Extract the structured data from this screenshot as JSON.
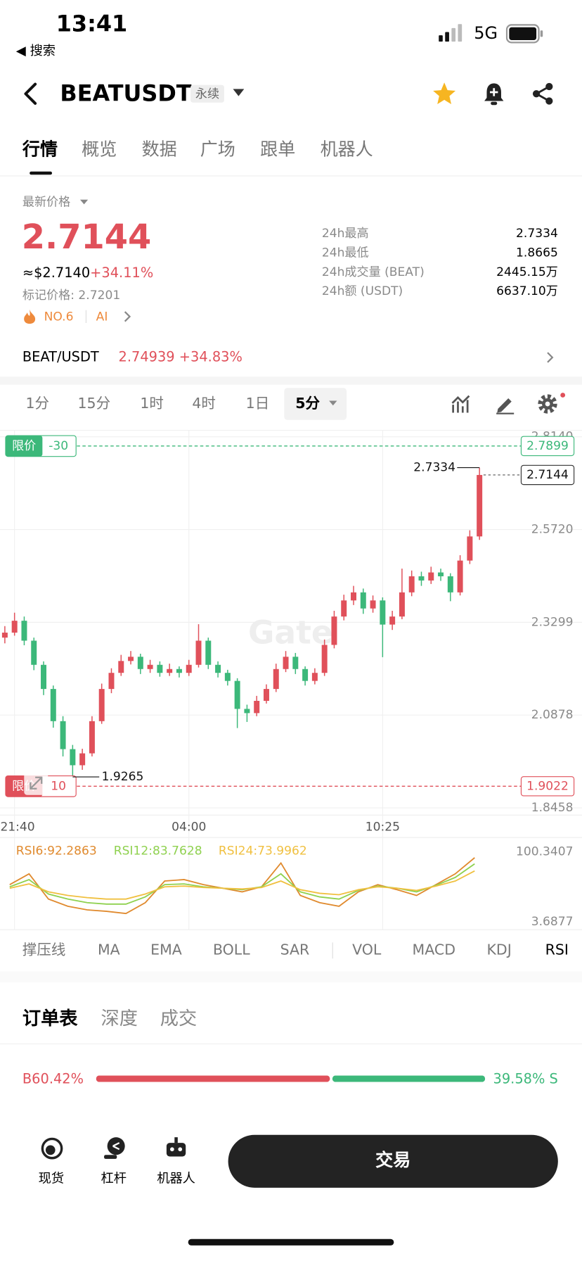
{
  "status": {
    "time": "13:41",
    "back": "◀ 搜索",
    "network": "5G"
  },
  "header": {
    "symbol": "BEATUSDT",
    "tag": "永续"
  },
  "tabs": [
    "行情",
    "概览",
    "数据",
    "广场",
    "跟单",
    "机器人"
  ],
  "price": {
    "label": "最新价格",
    "last": "2.7144",
    "usd": "≈$2.7140",
    "change": "+34.11%",
    "mark": "标记价格: 2.7201",
    "rank": "NO.6",
    "tag": "AI"
  },
  "stats": [
    [
      "24h最高",
      "2.7334"
    ],
    [
      "24h最低",
      "1.8665"
    ],
    [
      "24h成交量 (BEAT)",
      "2445.15万"
    ],
    [
      "24h额 (USDT)",
      "6637.10万"
    ]
  ],
  "spot": {
    "pair": "BEAT/USDT",
    "price": "2.74939",
    "change": "+34.83%"
  },
  "intervals": [
    "1分",
    "15分",
    "1时",
    "4时",
    "1日"
  ],
  "interval_selected": "5分",
  "chart_data": {
    "type": "candlestick",
    "up_color": "#e0505a",
    "down_color": "#3cb87a",
    "categories": [
      null,
      "21:40",
      null,
      null,
      null,
      null,
      null,
      null,
      null,
      null,
      null,
      null,
      null,
      null,
      null,
      null,
      null,
      null,
      null,
      "04:00",
      null,
      null,
      null,
      null,
      null,
      null,
      null,
      null,
      null,
      null,
      null,
      null,
      null,
      null,
      null,
      null,
      null,
      null,
      null,
      "10:25",
      null,
      null,
      null,
      null,
      null,
      null,
      null,
      null,
      null,
      null
    ],
    "ylim": [
      1.8458,
      2.814
    ],
    "yticks": [
      {
        "value": 2.814,
        "label": "2.8140"
      },
      {
        "value": 2.572,
        "label": "2.5720"
      },
      2.3299,
      2.0878,
      1.8458
    ],
    "watermark": "Gate",
    "ohlc": [
      [
        2.29,
        2.32,
        2.275,
        2.303
      ],
      [
        2.303,
        2.355,
        2.295,
        2.334
      ],
      [
        2.334,
        2.345,
        2.27,
        2.282
      ],
      [
        2.282,
        2.29,
        2.205,
        2.219
      ],
      [
        2.219,
        2.228,
        2.14,
        2.156
      ],
      [
        2.156,
        2.165,
        2.055,
        2.072
      ],
      [
        2.072,
        2.085,
        1.98,
        1.999
      ],
      [
        1.999,
        2.01,
        1.9265,
        1.957
      ],
      [
        1.957,
        2.0,
        1.945,
        1.988
      ],
      [
        1.988,
        2.085,
        1.98,
        2.072
      ],
      [
        2.072,
        2.17,
        2.065,
        2.156
      ],
      [
        2.156,
        2.21,
        2.145,
        2.198
      ],
      [
        2.198,
        2.245,
        2.19,
        2.229
      ],
      [
        2.229,
        2.255,
        2.22,
        2.24
      ],
      [
        2.24,
        2.248,
        2.195,
        2.208
      ],
      [
        2.208,
        2.232,
        2.198,
        2.219
      ],
      [
        2.219,
        2.228,
        2.188,
        2.198
      ],
      [
        2.198,
        2.222,
        2.19,
        2.208
      ],
      [
        2.208,
        2.215,
        2.186,
        2.198
      ],
      [
        2.198,
        2.232,
        2.19,
        2.219
      ],
      [
        2.219,
        2.325,
        2.212,
        2.282
      ],
      [
        2.282,
        2.29,
        2.208,
        2.219
      ],
      [
        2.219,
        2.228,
        2.186,
        2.198
      ],
      [
        2.198,
        2.206,
        2.165,
        2.177
      ],
      [
        2.177,
        2.184,
        2.054,
        2.104
      ],
      [
        2.104,
        2.115,
        2.07,
        2.093
      ],
      [
        2.093,
        2.138,
        2.085,
        2.125
      ],
      [
        2.125,
        2.168,
        2.118,
        2.156
      ],
      [
        2.156,
        2.222,
        2.148,
        2.208
      ],
      [
        2.208,
        2.255,
        2.2,
        2.24
      ],
      [
        2.24,
        2.25,
        2.195,
        2.208
      ],
      [
        2.208,
        2.215,
        2.165,
        2.177
      ],
      [
        2.177,
        2.21,
        2.168,
        2.198
      ],
      [
        2.198,
        2.285,
        2.19,
        2.271
      ],
      [
        2.271,
        2.36,
        2.262,
        2.345
      ],
      [
        2.345,
        2.402,
        2.335,
        2.387
      ],
      [
        2.387,
        2.425,
        2.375,
        2.408
      ],
      [
        2.408,
        2.418,
        2.352,
        2.366
      ],
      [
        2.366,
        2.4,
        2.355,
        2.387
      ],
      [
        2.387,
        2.395,
        2.239,
        2.324
      ],
      [
        2.324,
        2.36,
        2.31,
        2.345
      ],
      [
        2.345,
        2.47,
        2.338,
        2.408
      ],
      [
        2.408,
        2.465,
        2.398,
        2.45
      ],
      [
        2.45,
        2.462,
        2.425,
        2.439
      ],
      [
        2.439,
        2.475,
        2.43,
        2.46
      ],
      [
        2.46,
        2.47,
        2.438,
        2.45
      ],
      [
        2.45,
        2.458,
        2.385,
        2.408
      ],
      [
        2.408,
        2.505,
        2.4,
        2.491
      ],
      [
        2.491,
        2.57,
        2.482,
        2.554
      ],
      [
        2.554,
        2.7334,
        2.545,
        2.7144
      ]
    ],
    "last_price": 2.7144,
    "high_mark": 2.7334,
    "low_mark": 1.9265,
    "price_lines": [
      {
        "label": "限价",
        "qty": "-30",
        "price": 2.7899,
        "color": "#3cb87a"
      },
      {
        "label": "限价",
        "qty": "10",
        "price": 1.9022,
        "color": "#e0505a"
      }
    ],
    "rsi": {
      "ylim": [
        3.6877,
        100.3407
      ],
      "yticks": [
        100.3407,
        3.6877
      ],
      "series": [
        {
          "name": "RSI6:92.2863",
          "color": "#e08a2e",
          "values": [
            55,
            70,
            35,
            25,
            20,
            18,
            15,
            30,
            60,
            62,
            55,
            50,
            45,
            52,
            85,
            40,
            30,
            25,
            45,
            55,
            48,
            40,
            55,
            70,
            92.2863
          ]
        },
        {
          "name": "RSI12:83.7628",
          "color": "#8fd14f",
          "values": [
            52,
            62,
            42,
            35,
            30,
            28,
            28,
            38,
            55,
            56,
            52,
            50,
            48,
            52,
            70,
            45,
            38,
            35,
            47,
            53,
            50,
            45,
            54,
            65,
            83.7628
          ]
        },
        {
          "name": "RSI24:73.9962",
          "color": "#f0c040",
          "values": [
            50,
            56,
            45,
            40,
            37,
            35,
            35,
            42,
            52,
            53,
            51,
            50,
            49,
            51,
            60,
            48,
            43,
            41,
            48,
            52,
            50,
            47,
            53,
            60,
            73.9962
          ]
        }
      ]
    }
  },
  "indicators": [
    "撑压线",
    "MA",
    "EMA",
    "BOLL",
    "SAR",
    "VOL",
    "MACD",
    "KDJ",
    "RSI"
  ],
  "orderbook": {
    "tabs": [
      "订单表",
      "深度",
      "成交"
    ],
    "buy_letter": "B",
    "sell_letter": "S",
    "values": [
      60.42,
      39.58
    ],
    "value_labels": [
      "60.42%",
      "39.58%"
    ],
    "colors": [
      "#e0505a",
      "#3cb87a"
    ]
  },
  "nav": [
    "现货",
    "杠杆",
    "机器人"
  ],
  "trade": "交易"
}
